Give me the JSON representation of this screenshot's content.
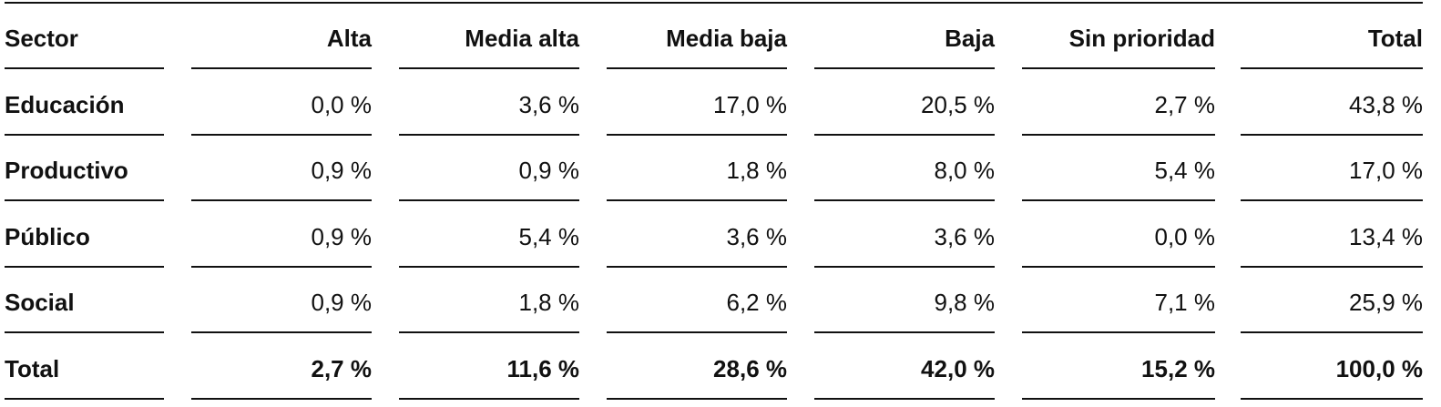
{
  "table": {
    "header": [
      "Sector",
      "Alta",
      "Media alta",
      "Media baja",
      "Baja",
      "Sin prioridad",
      "Total"
    ],
    "rows": [
      [
        "Educación",
        "0,0 %",
        "3,6 %",
        "17,0 %",
        "20,5 %",
        "2,7 %",
        "43,8 %"
      ],
      [
        "Productivo",
        "0,9 %",
        "0,9 %",
        "1,8 %",
        "8,0 %",
        "5,4 %",
        "17,0 %"
      ],
      [
        "Público",
        "0,9 %",
        "5,4 %",
        "3,6 %",
        "3,6 %",
        "0,0 %",
        "13,4 %"
      ],
      [
        "Social",
        "0,9 %",
        "1,8 %",
        "6,2 %",
        "9,8 %",
        "7,1 %",
        "25,9 %"
      ],
      [
        "Total",
        "2,7 %",
        "11,6 %",
        "28,6 %",
        "42,0 %",
        "15,2 %",
        "100,0 %"
      ]
    ]
  }
}
